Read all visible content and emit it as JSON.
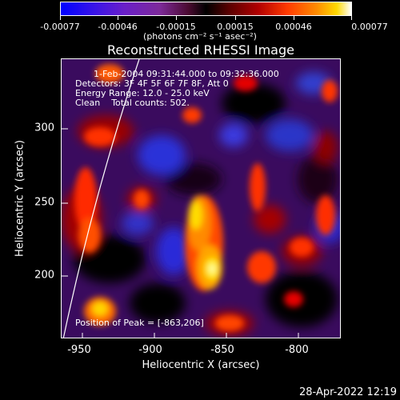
{
  "colorbar": {
    "tick_labels": [
      "-0.00077",
      "-0.00046",
      "-0.00015",
      "0.00015",
      "0.00046",
      "0.00077"
    ],
    "units": "(photons cm⁻² s⁻¹ asec⁻²)"
  },
  "plot": {
    "title": "Reconstructed RHESSI Image",
    "annotations": {
      "time_range": "1-Feb-2004 09:31:44.000 to 09:32:36.000",
      "detectors": "Detectors: 3F 4F 5F 6F 7F 8F, Att 0",
      "energy_range": "Energy Range: 12.0 - 25.0 keV",
      "clean": "Clean    Total counts: 502.",
      "peak": "Position of Peak = [-863,206]"
    },
    "x_axis": {
      "label": "Heliocentric X (arcsec)",
      "ticks": [
        "-950",
        "-900",
        "-850",
        "-800"
      ]
    },
    "y_axis": {
      "label": "Heliocentric Y (arcsec)",
      "ticks": [
        "300",
        "250",
        "200"
      ]
    },
    "colors": {
      "background": "#000000",
      "limb_line": "#ffffff"
    }
  },
  "footer": {
    "timestamp": "28-Apr-2022 12:19"
  }
}
